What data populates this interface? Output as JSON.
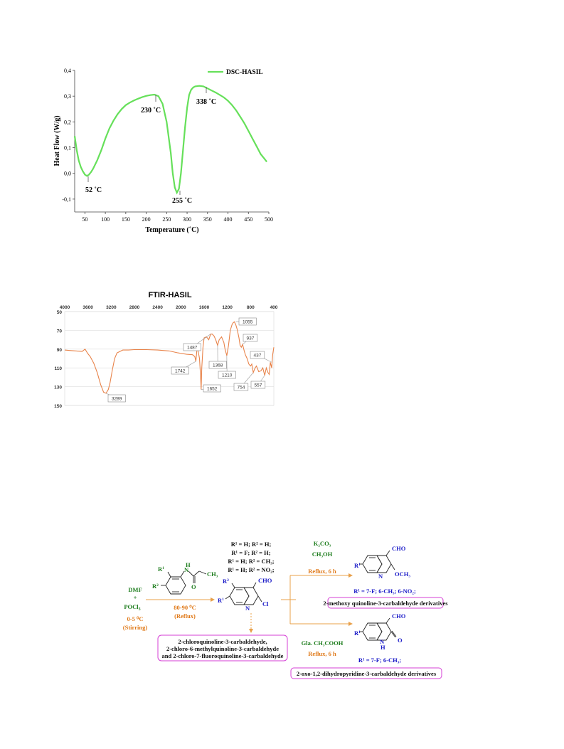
{
  "chart_data": [
    {
      "type": "line",
      "title": "",
      "xlabel": "Temperature (˚C)",
      "ylabel": "Heat Flow (W/g)",
      "xlim": [
        25,
        500
      ],
      "ylim": [
        -0.15,
        0.4
      ],
      "xticks": [
        "50",
        "100",
        "150",
        "200",
        "250",
        "300",
        "350",
        "400",
        "450",
        "500"
      ],
      "yticks": [
        "0,4",
        "0,3",
        "0,2",
        "0,1",
        "0,0",
        "-0,1"
      ],
      "series": [
        {
          "name": "DSC-HASIL",
          "color": "#66e05a",
          "x": [
            25,
            30,
            35,
            40,
            45,
            50,
            55,
            60,
            65,
            70,
            80,
            90,
            100,
            110,
            120,
            130,
            140,
            150,
            160,
            170,
            180,
            190,
            200,
            210,
            220,
            230,
            240,
            250,
            260,
            265,
            270,
            275,
            280,
            285,
            290,
            295,
            300,
            305,
            310,
            315,
            320,
            330,
            340,
            350,
            360,
            370,
            380,
            390,
            400,
            410,
            420,
            430,
            440,
            450,
            460,
            470,
            480,
            490,
            495
          ],
          "y": [
            0.145,
            0.09,
            0.05,
            0.025,
            0.008,
            -0.005,
            -0.01,
            -0.005,
            0.005,
            0.018,
            0.05,
            0.09,
            0.135,
            0.175,
            0.205,
            0.23,
            0.25,
            0.265,
            0.275,
            0.283,
            0.29,
            0.296,
            0.301,
            0.304,
            0.306,
            0.3,
            0.27,
            0.2,
            0.08,
            0.0,
            -0.055,
            -0.075,
            -0.06,
            0.0,
            0.09,
            0.18,
            0.255,
            0.305,
            0.325,
            0.334,
            0.338,
            0.34,
            0.338,
            0.33,
            0.322,
            0.314,
            0.305,
            0.295,
            0.282,
            0.265,
            0.245,
            0.22,
            0.195,
            0.165,
            0.135,
            0.105,
            0.075,
            0.055,
            0.045
          ]
        }
      ],
      "annotations": [
        "52 ˚C",
        "230 ˚C",
        "255 ˚C",
        "338 ˚C"
      ]
    },
    {
      "type": "line",
      "title": "FTIR-HASIL",
      "xlabel": "",
      "ylabel": "",
      "xlim": [
        4000,
        400
      ],
      "ylim": [
        150,
        50
      ],
      "xticks": [
        "4000",
        "3600",
        "3200",
        "2800",
        "2400",
        "2000",
        "1600",
        "1200",
        "800",
        "400"
      ],
      "yticks": [
        "50",
        "70",
        "90",
        "110",
        "130",
        "150"
      ],
      "series": [
        {
          "name": "",
          "color": "#e8834a",
          "x": [
            4000,
            3900,
            3800,
            3700,
            3650,
            3620,
            3600,
            3560,
            3500,
            3440,
            3380,
            3330,
            3289,
            3250,
            3220,
            3180,
            3140,
            3100,
            3000,
            2900,
            2800,
            2600,
            2400,
            2200,
            2050,
            1900,
            1800,
            1760,
            1742,
            1720,
            1700,
            1680,
            1660,
            1652,
            1640,
            1620,
            1600,
            1560,
            1520,
            1487,
            1460,
            1430,
            1400,
            1368,
            1340,
            1300,
            1260,
            1240,
            1210,
            1180,
            1150,
            1120,
            1100,
            1080,
            1055,
            1030,
            1000,
            980,
            960,
            937,
            910,
            890,
            860,
            830,
            800,
            780,
            754,
            730,
            700,
            660,
            620,
            590,
            557,
            530,
            500,
            480,
            460,
            437,
            420,
            400
          ],
          "y": [
            91,
            91.5,
            92,
            92.5,
            90,
            93,
            95,
            98,
            105,
            115,
            128,
            136,
            137,
            133,
            126,
            112,
            100,
            94,
            91,
            91,
            90.5,
            90.5,
            91,
            92,
            94,
            95.5,
            96,
            98,
            103,
            88,
            93,
            100,
            120,
            133,
            110,
            88,
            78,
            77,
            80,
            74,
            74,
            76,
            80,
            86,
            80,
            77,
            83,
            90,
            97,
            86,
            70,
            64,
            62,
            61,
            64,
            69,
            78,
            86,
            88,
            85,
            92,
            96,
            100,
            106,
            108,
            106,
            115,
            111,
            108,
            114,
            113,
            110,
            118,
            110,
            115,
            117,
            104,
            110,
            96,
            88
          ]
        }
      ],
      "annotations": [
        "1055",
        "937",
        "437",
        "1487",
        "1368",
        "1742",
        "1210",
        "1652",
        "754",
        "557",
        "3289"
      ]
    }
  ],
  "dsc": {
    "legend": "DSC-HASIL",
    "ylabel": "Heat Flow (W/g)",
    "xlabel": "Temperature (˚C)",
    "peaks": [
      "52 ˚C",
      "230 ˚C",
      "255 ˚C",
      "338 ˚C"
    ],
    "yticks": [
      "0,4",
      "0,3",
      "0,2",
      "0,1",
      "0,0",
      "-0,1"
    ],
    "xticks": [
      "50",
      "100",
      "150",
      "200",
      "250",
      "300",
      "350",
      "400",
      "450",
      "500"
    ]
  },
  "ftir": {
    "title": "FTIR-HASIL",
    "xticks": [
      "4000",
      "3600",
      "3200",
      "2800",
      "2400",
      "2000",
      "1600",
      "1200",
      "800",
      "400"
    ],
    "yticks": [
      "50",
      "70",
      "90",
      "110",
      "130",
      "150"
    ],
    "labels": [
      "1055",
      "937",
      "437",
      "1487",
      "1368",
      "1742",
      "1210",
      "1652",
      "754",
      "557",
      "3289"
    ]
  },
  "scheme": {
    "dmf": "DMF",
    "plus": "+",
    "pocl": "POCl",
    "pocl_sub": "3",
    "cond1_temp": "0-5 ⁰C",
    "cond1_mode": "(Stirring)",
    "r1": "R",
    "r1_sup": "1",
    "r2_sup": "2",
    "cond2_temp": "80-90 ⁰C",
    "cond2_mode": "(Reflux)",
    "subst_lines": [
      "R¹ = H; R² = H;",
      "R¹ = F; R² = H;",
      "R¹ = H; R² = CH₃;",
      "R¹ = H; R² = NO₂;"
    ],
    "cho": "CHO",
    "cl": "Cl",
    "nh": "N",
    "product_box": [
      "2-chloroquinoline-3-carbaldehyde,",
      "2-chloro-6-methylquinoline-3-carbaldehyde",
      "and 2-chloro-7-fluoroquinoline-3-carbaldehyde"
    ],
    "k2co3": "K₂CO₃",
    "ch3oh": "CH₃OH",
    "reflux6h_a": "Reflux, 6 h",
    "och3": "OCH₃",
    "top_subst": "R¹ = 7-F; 6-CH₃; 6-NO₂;",
    "top_box": "2-methoxy quinoline-3-carbaldehyde derivatives",
    "acoh": "Gla. CH₃COOH",
    "reflux6h_b": "Reflux, 6 h",
    "h": "H",
    "o": "O",
    "bot_subst": "R¹ = 7-F; 6-CH₃;",
    "bot_box": "2-oxo-1,2-dihydropyridine-3-carbaldehyde derivatives"
  }
}
